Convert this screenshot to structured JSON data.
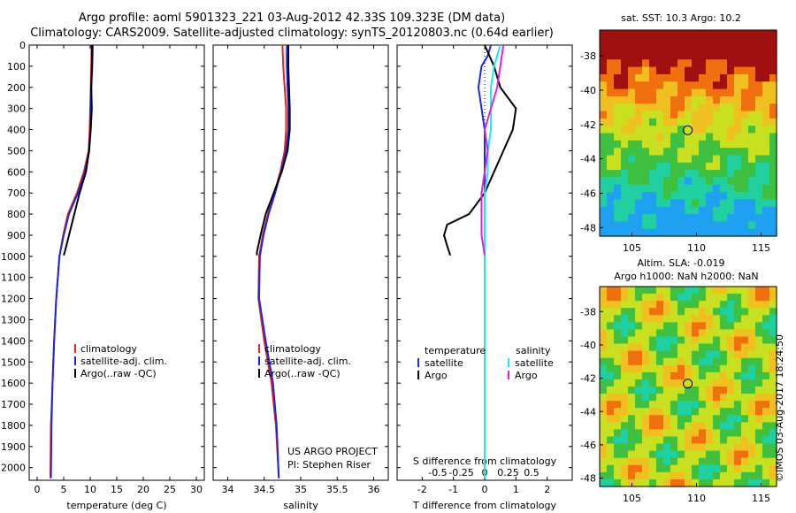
{
  "header": {
    "line1": "Argo profile: aoml 5901323_221 03-Aug-2012 42.33S 109.323E (DM data)",
    "line2": "Climatology: CARS2009. Satellite-adjusted climatology: synTS_20120803.nc (0.64d earlier)"
  },
  "credit": "©IMOS 03-Aug-2017 18:24:50",
  "colors": {
    "climatology": "#e8231c",
    "satellite": "#1c27e8",
    "argo": "#000000",
    "argo_sal": "#e020e0",
    "sat_sal": "#20e8e8"
  },
  "chart_data": [
    {
      "type": "line",
      "title": "",
      "xlabel": "temperature (deg C)",
      "ylabel": "",
      "xlim": [
        -1.5,
        31.5
      ],
      "ylim": [
        2060,
        0
      ],
      "xticks": [
        "0",
        "5",
        "10",
        "15",
        "20",
        "25",
        "30"
      ],
      "yticks": [
        "0",
        "100",
        "200",
        "300",
        "400",
        "500",
        "600",
        "700",
        "800",
        "900",
        "1000",
        "1100",
        "1200",
        "1300",
        "1400",
        "1500",
        "1600",
        "1700",
        "1800",
        "1900",
        "2000"
      ],
      "legend": [
        "climatology",
        "satellite-adj. clim.",
        "Argo(..raw -QC)"
      ],
      "series": [
        {
          "name": "climatology",
          "color": "#e8231c",
          "x": [
            10.3,
            10.2,
            10.1,
            10.0,
            9.9,
            9.7,
            8.8,
            7.5,
            5.8,
            4.9,
            4.2,
            3.6,
            3.2,
            2.9,
            2.6,
            2.5
          ],
          "y": [
            0,
            100,
            200,
            300,
            400,
            500,
            600,
            700,
            800,
            900,
            1000,
            1200,
            1400,
            1600,
            1800,
            2050
          ]
        },
        {
          "name": "satellite-adj. clim.",
          "color": "#1c27e8",
          "x": [
            10.5,
            10.4,
            10.2,
            10.1,
            10.0,
            9.8,
            9.0,
            7.7,
            6.0,
            5.0,
            4.2,
            3.6,
            3.2,
            2.9,
            2.7,
            2.6
          ],
          "y": [
            0,
            100,
            200,
            300,
            400,
            500,
            600,
            700,
            800,
            900,
            1000,
            1200,
            1400,
            1600,
            1800,
            2050
          ]
        },
        {
          "name": "Argo(..raw -QC)",
          "color": "#000000",
          "x": [
            10.3,
            10.3,
            10.2,
            10.3,
            10.1,
            9.8,
            9.2,
            8.0,
            7.0,
            6.0,
            5.2,
            5.0
          ],
          "y": [
            0,
            100,
            200,
            300,
            400,
            500,
            600,
            700,
            800,
            900,
            980,
            995
          ]
        }
      ],
      "annotation": ""
    },
    {
      "type": "line",
      "title": "",
      "xlabel": "salinity",
      "ylabel": "",
      "xlim": [
        33.8,
        36.2
      ],
      "ylim": [
        2060,
        0
      ],
      "xticks": [
        "34",
        "34.5",
        "35",
        "35.5",
        "36"
      ],
      "legend": [
        "climatology",
        "satellite-adj. clim.",
        "Argo(..raw -QC)"
      ],
      "series": [
        {
          "name": "climatology",
          "color": "#e8231c",
          "x": [
            34.75,
            34.76,
            34.78,
            34.8,
            34.8,
            34.78,
            34.72,
            34.64,
            34.55,
            34.48,
            34.43,
            34.42,
            34.5,
            34.6,
            34.66,
            34.7
          ],
          "y": [
            0,
            100,
            200,
            300,
            400,
            500,
            600,
            700,
            800,
            900,
            1000,
            1200,
            1400,
            1600,
            1800,
            2050
          ]
        },
        {
          "name": "satellite-adj. clim.",
          "color": "#1c27e8",
          "x": [
            34.81,
            34.81,
            34.82,
            34.83,
            34.83,
            34.8,
            34.73,
            34.65,
            34.56,
            34.49,
            34.44,
            34.43,
            34.52,
            34.62,
            34.67,
            34.7
          ],
          "y": [
            0,
            100,
            200,
            300,
            400,
            500,
            600,
            700,
            800,
            900,
            1000,
            1200,
            1400,
            1600,
            1800,
            2050
          ]
        },
        {
          "name": "Argo(..raw -QC)",
          "color": "#000000",
          "x": [
            34.83,
            34.83,
            34.84,
            34.85,
            34.85,
            34.82,
            34.74,
            34.63,
            34.52,
            34.45,
            34.4,
            34.4
          ],
          "y": [
            0,
            100,
            200,
            300,
            400,
            500,
            600,
            700,
            800,
            900,
            980,
            995
          ]
        }
      ],
      "annotation_lines": [
        "US ARGO PROJECT",
        "PI: Stephen Riser"
      ]
    },
    {
      "type": "line",
      "title": "",
      "xlabel": "T difference from climatology",
      "xlabel2": "S difference from climatology",
      "xlim": [
        -2.8,
        2.8
      ],
      "xticks": [
        "-2",
        "-1",
        "0",
        "1",
        "2"
      ],
      "xticks2": [
        "-0.5",
        "-0.25",
        "0",
        "0.25",
        "0.5"
      ],
      "ylim": [
        2060,
        0
      ],
      "legend_groups": [
        {
          "title": "temperature",
          "items": [
            "satellite",
            "Argo"
          ]
        },
        {
          "title": "salinity",
          "items": [
            "satellite",
            "Argo"
          ]
        }
      ],
      "series": [
        {
          "name": "T satellite",
          "color": "#1c27e8",
          "x": [
            0.2,
            0.1,
            -0.1,
            -0.2,
            -0.1,
            0.0,
            0.0,
            0.0,
            0.0,
            0.0,
            0.0,
            0.0,
            0.0
          ],
          "y": [
            0,
            50,
            100,
            200,
            300,
            400,
            500,
            700,
            1000,
            1300,
            1600,
            1900,
            2050
          ]
        },
        {
          "name": "T Argo",
          "color": "#000000",
          "x": [
            0.0,
            0.3,
            0.5,
            1.0,
            0.9,
            0.6,
            0.3,
            0.0,
            -0.5,
            -1.2,
            -1.3,
            -1.2,
            -1.1
          ],
          "y": [
            0,
            100,
            200,
            300,
            400,
            500,
            600,
            700,
            800,
            850,
            900,
            950,
            995
          ]
        },
        {
          "name": "S satellite",
          "color": "#20e8e8",
          "x": [
            0.5,
            0.3,
            0.2,
            0.2,
            0.2,
            0.1,
            0.1,
            0.0,
            0.0,
            0.0,
            0.0,
            0.0
          ],
          "y": [
            0,
            100,
            200,
            300,
            400,
            500,
            600,
            700,
            1000,
            1400,
            1800,
            2050
          ]
        },
        {
          "name": "S Argo",
          "color": "#e020e0",
          "x": [
            0.6,
            0.5,
            0.4,
            0.2,
            0.0,
            0.1,
            0.0,
            -0.1,
            -0.1,
            0.0
          ],
          "y": [
            0,
            100,
            200,
            300,
            400,
            500,
            600,
            700,
            900,
            995
          ]
        }
      ]
    }
  ],
  "maps": {
    "sst": {
      "title": "sat. SST: 10.3 Argo: 10.2"
    },
    "sla": {
      "title_lines": [
        "Altim. SLA: -0.019",
        "Argo h1000: NaN h2000: NaN"
      ]
    },
    "yticks": [
      "-38",
      "-40",
      "-42",
      "-44",
      "-46",
      "-48"
    ],
    "xticks": [
      "105",
      "110",
      "115"
    ],
    "lat_range": [
      -48.5,
      -36.5
    ],
    "lon_range": [
      102.5,
      116.2
    ],
    "marker": {
      "lat": -42.33,
      "lon": 109.323
    }
  }
}
